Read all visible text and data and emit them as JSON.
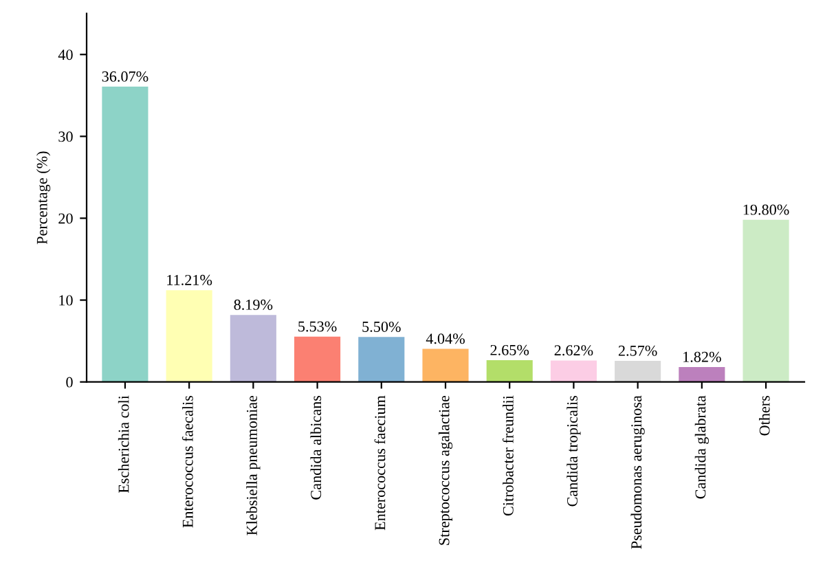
{
  "chart_data": {
    "type": "bar",
    "ylabel": "Percentage (%)",
    "categories": [
      "Escherichia coli",
      "Enterococcus faecalis",
      "Klebsiella pneumoniae",
      "Candida albicans",
      "Enterococcus faecium",
      "Streptococcus agalactiae",
      "Citrobacter freundii",
      "Candida tropicalis",
      "Pseudomonas aeruginosa",
      "Candida glabrata",
      "Others"
    ],
    "values": [
      36.07,
      11.21,
      8.19,
      5.53,
      5.5,
      4.04,
      2.65,
      2.62,
      2.57,
      1.82,
      19.8
    ],
    "colors": [
      "#8dd3c7",
      "#ffffb3",
      "#bebada",
      "#fb8072",
      "#80b1d3",
      "#fdb462",
      "#b3de69",
      "#fccde5",
      "#d9d9d9",
      "#bc80bd",
      "#ccebc5"
    ],
    "value_labels": [
      "36.07%",
      "11.21%",
      "8.19%",
      "5.53%",
      "5.50%",
      "4.04%",
      "2.65%",
      "2.62%",
      "2.57%",
      "1.82%",
      "19.80%"
    ],
    "ylim": [
      0,
      45
    ],
    "yticks": [
      0,
      10,
      20,
      30,
      40
    ],
    "grid": false,
    "legend": false
  }
}
